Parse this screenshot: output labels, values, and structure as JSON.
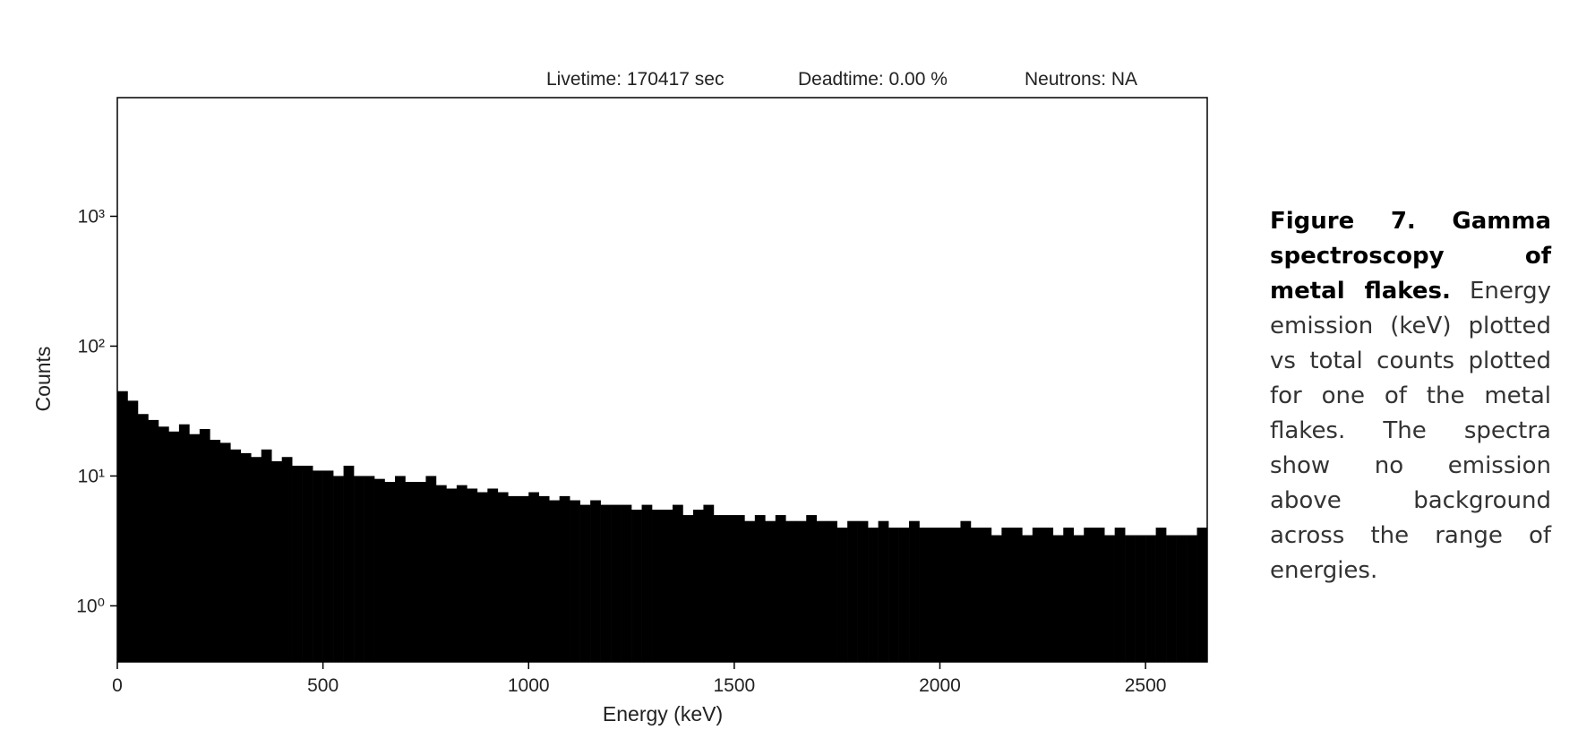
{
  "chart_data": {
    "type": "histogram",
    "annotations": [
      "Livetime: 170417 sec",
      "Deadtime: 0.00 %",
      "Neutrons: NA"
    ],
    "x_label": "Energy (keV)",
    "y_label": "Counts",
    "bins": [
      0,
      25,
      50,
      75,
      100,
      125,
      150,
      175,
      200,
      225,
      250,
      275,
      300,
      325,
      350,
      375,
      400,
      425,
      450,
      475,
      500,
      525,
      550,
      575,
      600,
      625,
      650,
      675,
      700,
      725,
      750,
      775,
      800,
      825,
      850,
      875,
      900,
      925,
      950,
      975,
      1000,
      1025,
      1050,
      1075,
      1100,
      1125,
      1150,
      1175,
      1200,
      1225,
      1250,
      1275,
      1300,
      1325,
      1350,
      1375,
      1400,
      1425,
      1450,
      1475,
      1500,
      1525,
      1550,
      1575,
      1600,
      1625,
      1650,
      1675,
      1700,
      1725,
      1750,
      1775,
      1800,
      1825,
      1850,
      1875,
      1900,
      1925,
      1950,
      1975,
      2000,
      2025,
      2050,
      2075,
      2100,
      2125,
      2150,
      2175,
      2200,
      2225,
      2250,
      2275,
      2300,
      2325,
      2350,
      2375,
      2400,
      2425,
      2450,
      2475,
      2500,
      2525,
      2550,
      2575,
      2600,
      2625,
      2650
    ],
    "counts": [
      45,
      38,
      30,
      27,
      24,
      22,
      25,
      21,
      23,
      19,
      18,
      16,
      15,
      14,
      16,
      13,
      14,
      12,
      12,
      11,
      11,
      10,
      12,
      10,
      10,
      9.5,
      9,
      10,
      9,
      9,
      10,
      8.5,
      8,
      8.5,
      8,
      7.5,
      8,
      7.5,
      7,
      7,
      7.5,
      7,
      6.5,
      7,
      6.5,
      6,
      6.5,
      6,
      6,
      6,
      5.5,
      6,
      5.5,
      5.5,
      6,
      5,
      5.5,
      6,
      5,
      5,
      5,
      4.5,
      5,
      4.5,
      5,
      4.5,
      4.5,
      5,
      4.5,
      4.5,
      4,
      4.5,
      4.5,
      4,
      4.5,
      4,
      4,
      4.5,
      4,
      4,
      4,
      4,
      4.5,
      4,
      4,
      3.5,
      4,
      4,
      3.5,
      4,
      4,
      3.5,
      4,
      3.5,
      4,
      4,
      3.5,
      4,
      3.5,
      3.5,
      3.5,
      4,
      3.5,
      3.5,
      3.5,
      4
    ],
    "color": "#000000",
    "xlim": [
      0,
      2650
    ],
    "xticks": [
      0,
      500,
      1000,
      1500,
      2000,
      2500
    ],
    "ylim": [
      0.37,
      8200
    ],
    "log_y": true,
    "yticks": [
      {
        "value": 1,
        "label": "10⁰"
      },
      {
        "value": 10,
        "label": "10¹"
      },
      {
        "value": 100,
        "label": "10²"
      },
      {
        "value": 1000,
        "label": "10³"
      }
    ]
  },
  "caption": {
    "label": "Figure 7. Gamma spectroscopy of metal flakes.",
    "text": "Energy emission (keV) plotted vs total counts plotted for one of the metal flakes. The spectra show no emission above background across the range of energies."
  }
}
